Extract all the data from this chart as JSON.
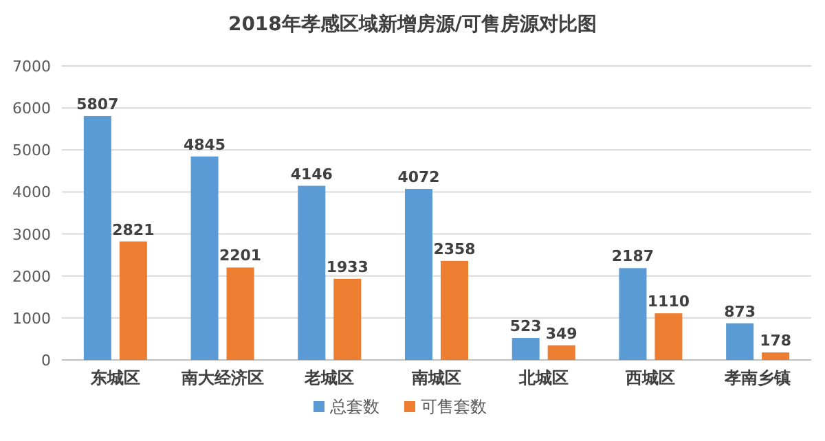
{
  "chart_data": {
    "type": "bar",
    "title": "2018年孝感区域新增房源/可售房源对比图",
    "categories": [
      "东城区",
      "南大经济区",
      "老城区",
      "南城区",
      "北城区",
      "西城区",
      "孝南乡镇"
    ],
    "series": [
      {
        "name": "总套数",
        "color": "#5b9bd5",
        "values": [
          5807,
          4845,
          4146,
          4072,
          523,
          2187,
          873
        ]
      },
      {
        "name": "可售套数",
        "color": "#ed7d31",
        "values": [
          2821,
          2201,
          1933,
          2358,
          349,
          1110,
          178
        ]
      }
    ],
    "ylim": [
      0,
      7000
    ],
    "yticks": [
      0,
      1000,
      2000,
      3000,
      4000,
      5000,
      6000,
      7000
    ],
    "grid": "y",
    "legend": "bottom",
    "data_labels": true
  }
}
